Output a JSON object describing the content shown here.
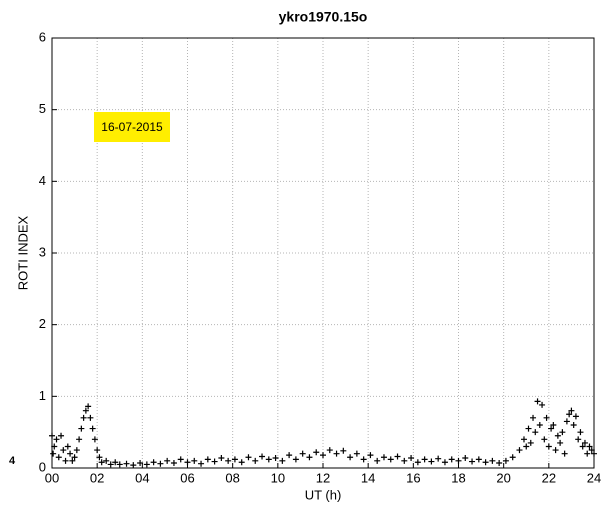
{
  "chart_data": {
    "type": "scatter",
    "title": "ykro1970.15o",
    "x_label": "UT (h)",
    "y_label": "ROTI INDEX",
    "annotation": "16-07-2015",
    "clipped_label": "4",
    "xlim": [
      0,
      24
    ],
    "ylim": [
      0,
      6
    ],
    "grid": true,
    "marker": "+",
    "xticks": [
      {
        "value": 0,
        "label": "00"
      },
      {
        "value": 2,
        "label": "02"
      },
      {
        "value": 4,
        "label": "04"
      },
      {
        "value": 6,
        "label": "06"
      },
      {
        "value": 8,
        "label": "08"
      },
      10,
      12,
      14,
      16,
      18,
      20,
      22,
      24
    ],
    "yticks": [
      0,
      1,
      2,
      3,
      4,
      5,
      6
    ],
    "series": [
      {
        "name": "ROTI",
        "color": "#000000",
        "x": [
          0.0,
          0.05,
          0.1,
          0.2,
          0.3,
          0.4,
          0.5,
          0.6,
          0.7,
          0.8,
          0.9,
          1.0,
          1.1,
          1.2,
          1.3,
          1.4,
          1.5,
          1.6,
          1.7,
          1.8,
          1.9,
          2.0,
          2.1,
          2.2,
          2.4,
          2.6,
          2.8,
          3.0,
          3.3,
          3.6,
          3.9,
          4.2,
          4.5,
          4.8,
          5.1,
          5.4,
          5.7,
          6.0,
          6.3,
          6.6,
          6.9,
          7.2,
          7.5,
          7.8,
          8.1,
          8.4,
          8.7,
          9.0,
          9.3,
          9.6,
          9.9,
          10.2,
          10.5,
          10.8,
          11.1,
          11.4,
          11.7,
          12.0,
          12.3,
          12.6,
          12.9,
          13.2,
          13.5,
          13.8,
          14.1,
          14.4,
          14.7,
          15.0,
          15.3,
          15.6,
          15.9,
          16.2,
          16.5,
          16.8,
          17.1,
          17.4,
          17.7,
          18.0,
          18.3,
          18.6,
          18.9,
          19.2,
          19.5,
          19.8,
          20.1,
          20.4,
          20.7,
          20.9,
          21.0,
          21.1,
          21.2,
          21.3,
          21.4,
          21.5,
          21.6,
          21.7,
          21.8,
          21.9,
          22.0,
          22.1,
          22.2,
          22.3,
          22.4,
          22.5,
          22.6,
          22.7,
          22.8,
          22.9,
          23.0,
          23.1,
          23.2,
          23.3,
          23.4,
          23.5,
          23.6,
          23.7,
          23.8,
          23.9,
          24.0
        ],
        "values": [
          0.45,
          0.2,
          0.3,
          0.4,
          0.15,
          0.45,
          0.25,
          0.1,
          0.3,
          0.2,
          0.1,
          0.15,
          0.25,
          0.4,
          0.55,
          0.7,
          0.8,
          0.86,
          0.7,
          0.55,
          0.4,
          0.25,
          0.15,
          0.08,
          0.1,
          0.05,
          0.08,
          0.05,
          0.06,
          0.04,
          0.07,
          0.05,
          0.08,
          0.06,
          0.1,
          0.07,
          0.12,
          0.08,
          0.1,
          0.06,
          0.12,
          0.09,
          0.14,
          0.1,
          0.12,
          0.08,
          0.15,
          0.1,
          0.16,
          0.12,
          0.14,
          0.1,
          0.18,
          0.12,
          0.2,
          0.15,
          0.22,
          0.18,
          0.25,
          0.2,
          0.24,
          0.15,
          0.2,
          0.12,
          0.18,
          0.1,
          0.15,
          0.12,
          0.16,
          0.1,
          0.14,
          0.08,
          0.12,
          0.09,
          0.13,
          0.08,
          0.12,
          0.1,
          0.14,
          0.09,
          0.12,
          0.08,
          0.1,
          0.07,
          0.1,
          0.15,
          0.25,
          0.4,
          0.3,
          0.55,
          0.35,
          0.7,
          0.5,
          0.93,
          0.6,
          0.88,
          0.4,
          0.7,
          0.3,
          0.55,
          0.6,
          0.25,
          0.45,
          0.35,
          0.5,
          0.2,
          0.65,
          0.75,
          0.8,
          0.6,
          0.72,
          0.4,
          0.5,
          0.3,
          0.35,
          0.2,
          0.3,
          0.25,
          0.2
        ]
      }
    ]
  }
}
